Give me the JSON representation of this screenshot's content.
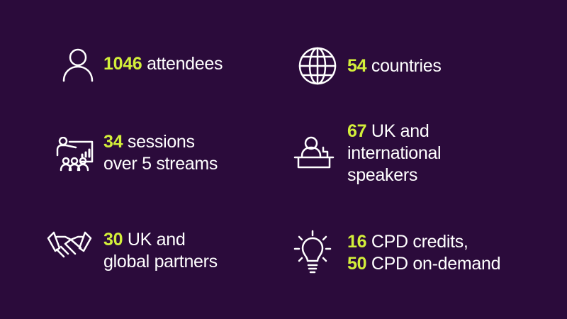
{
  "colors": {
    "background": "#2b0b3b",
    "highlight": "#d3ef3a",
    "text": "#ffffff"
  },
  "stats": [
    {
      "icon": "person-icon",
      "number": "1046",
      "lines": [
        " attendees"
      ]
    },
    {
      "icon": "globe-icon",
      "number": "54",
      "lines": [
        " countries"
      ]
    },
    {
      "icon": "presentation-icon",
      "number": "34",
      "lines": [
        " sessions",
        "over 5 streams"
      ]
    },
    {
      "icon": "speaker-podium-icon",
      "number": "67",
      "lines": [
        " UK and",
        "international",
        "speakers"
      ]
    },
    {
      "icon": "handshake-icon",
      "number": "30",
      "lines": [
        " UK and",
        "global partners"
      ]
    },
    {
      "icon": "lightbulb-icon",
      "number": "16",
      "lines": [
        " CPD credits,",
        ""
      ],
      "number2": "50",
      "line2_rest": " CPD on-demand"
    }
  ]
}
